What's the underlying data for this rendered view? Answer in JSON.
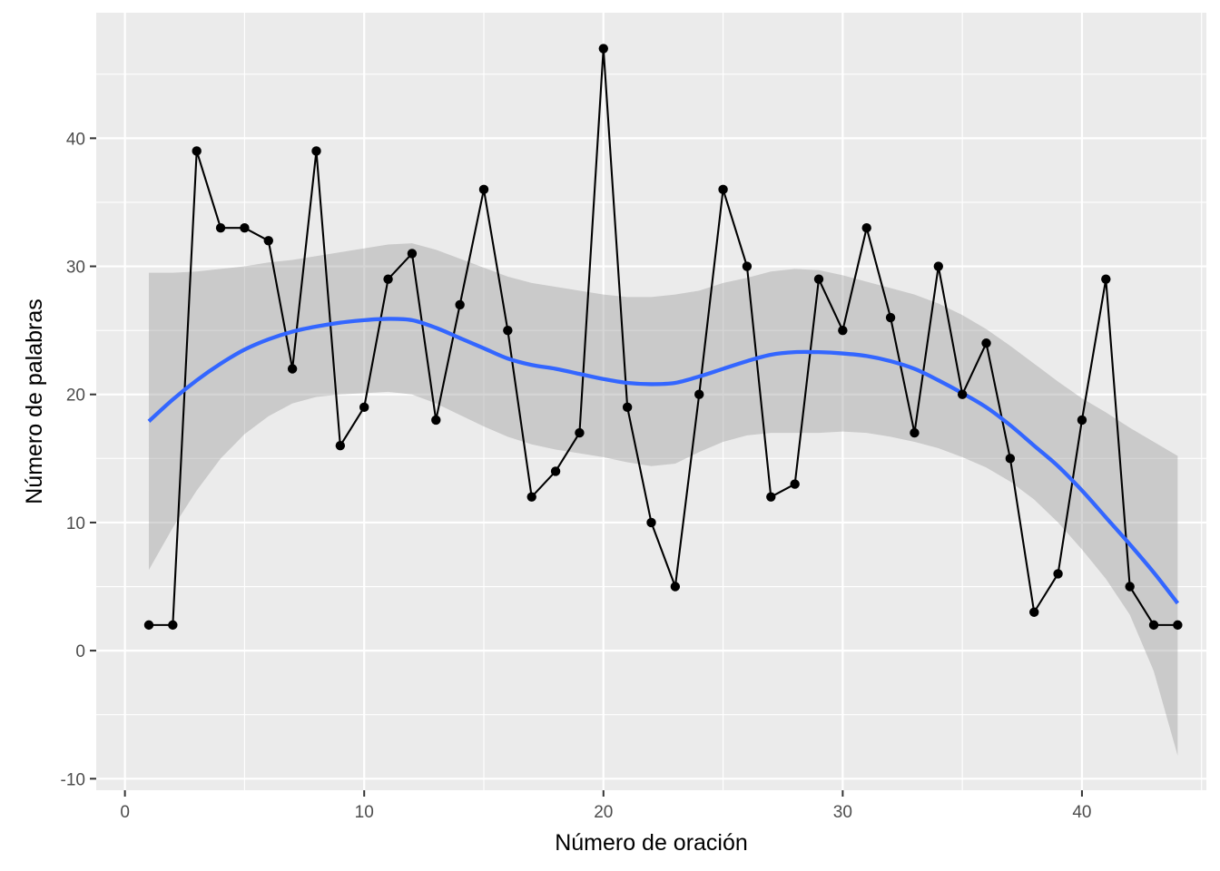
{
  "chart_data": {
    "type": "line",
    "xlabel": "Número de oración",
    "ylabel": "Número de palabras",
    "xlim": [
      -1.2,
      45.2
    ],
    "ylim": [
      -10.9,
      49.8
    ],
    "x_ticks": [
      0,
      10,
      20,
      30,
      40
    ],
    "x_tick_labels": [
      "0",
      "10",
      "20",
      "30",
      "40"
    ],
    "y_ticks": [
      -10,
      0,
      10,
      20,
      30,
      40
    ],
    "y_tick_labels": [
      "-10",
      "0",
      "10",
      "20",
      "30",
      "40"
    ],
    "grid": true,
    "legend": "none",
    "series": [
      {
        "kind": "line+points",
        "color": "#000000",
        "x": [
          1,
          2,
          3,
          4,
          5,
          6,
          7,
          8,
          9,
          10,
          11,
          12,
          13,
          14,
          15,
          16,
          17,
          18,
          19,
          20,
          21,
          22,
          23,
          24,
          25,
          26,
          27,
          28,
          29,
          30,
          31,
          32,
          33,
          34,
          35,
          36,
          37,
          38,
          39,
          40,
          41,
          42,
          43,
          44
        ],
        "y": [
          2,
          2,
          39,
          33,
          33,
          32,
          22,
          39,
          16,
          19,
          29,
          31,
          18,
          27,
          36,
          25,
          12,
          14,
          17,
          47,
          19,
          10,
          5,
          20,
          36,
          30,
          12,
          13,
          29,
          25,
          33,
          26,
          17,
          30,
          20,
          24,
          15,
          3,
          6,
          18,
          29,
          5,
          2,
          2
        ]
      },
      {
        "kind": "smooth",
        "color": "#3366FF",
        "ribbon_color": "#999999",
        "x": [
          1,
          2,
          3,
          4,
          5,
          6,
          7,
          8,
          9,
          10,
          11,
          12,
          13,
          14,
          15,
          16,
          17,
          18,
          19,
          20,
          21,
          22,
          23,
          24,
          25,
          26,
          27,
          28,
          29,
          30,
          31,
          32,
          33,
          34,
          35,
          36,
          37,
          38,
          39,
          40,
          41,
          42,
          43,
          44
        ],
        "y": [
          17.9,
          19.6,
          21.1,
          22.4,
          23.5,
          24.3,
          24.9,
          25.3,
          25.6,
          25.8,
          25.9,
          25.8,
          25.2,
          24.4,
          23.6,
          22.8,
          22.3,
          22.0,
          21.6,
          21.2,
          20.9,
          20.8,
          20.9,
          21.4,
          22.0,
          22.6,
          23.1,
          23.3,
          23.3,
          23.2,
          23.0,
          22.6,
          22.0,
          21.1,
          20.1,
          19.0,
          17.6,
          16.0,
          14.4,
          12.5,
          10.4,
          8.3,
          6.1,
          3.7
        ],
        "lower": [
          6.3,
          9.6,
          12.5,
          15.0,
          16.9,
          18.3,
          19.3,
          19.8,
          20.0,
          20.1,
          20.2,
          20.0,
          19.3,
          18.4,
          17.5,
          16.7,
          16.1,
          15.7,
          15.4,
          15.1,
          14.7,
          14.4,
          14.6,
          15.5,
          16.3,
          16.8,
          17.0,
          17.0,
          17.0,
          17.1,
          17.0,
          16.7,
          16.3,
          15.8,
          15.1,
          14.3,
          13.2,
          11.8,
          10.0,
          7.9,
          5.6,
          2.8,
          -1.6,
          -8.2
        ],
        "upper": [
          29.5,
          29.5,
          29.6,
          29.8,
          30.0,
          30.3,
          30.5,
          30.8,
          31.1,
          31.4,
          31.7,
          31.8,
          31.3,
          30.6,
          29.9,
          29.2,
          28.7,
          28.4,
          28.1,
          27.8,
          27.6,
          27.6,
          27.8,
          28.1,
          28.7,
          29.1,
          29.6,
          29.8,
          29.7,
          29.3,
          28.8,
          28.3,
          27.8,
          27.1,
          26.2,
          25.1,
          23.8,
          22.4,
          21.0,
          19.7,
          18.6,
          17.4,
          16.3,
          15.2
        ]
      }
    ]
  }
}
